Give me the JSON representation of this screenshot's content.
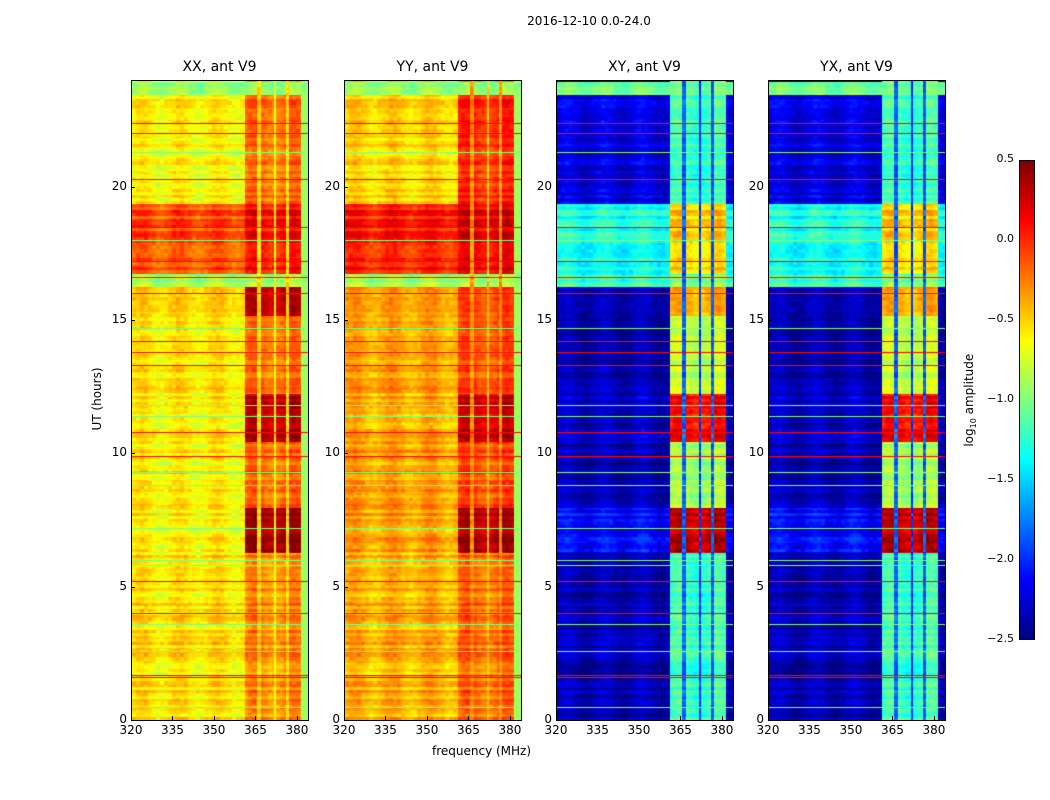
{
  "suptitle": "2016-12-10 0.0-24.0",
  "chart_data": {
    "type": "heatmap",
    "title": "2016-12-10 0.0-24.0",
    "xlabel": "frequency (MHz)",
    "ylabel": "UT (hours)",
    "xlim": [
      320,
      384
    ],
    "ylim": [
      0,
      24
    ],
    "xticks": [
      "320",
      "335",
      "350",
      "365",
      "380"
    ],
    "xtick_values": [
      320,
      335,
      350,
      365,
      380
    ],
    "yticks": [
      "0",
      "5",
      "10",
      "15",
      "20"
    ],
    "ytick_values": [
      0,
      5,
      10,
      15,
      20
    ],
    "colormap": "jet",
    "colorbar": {
      "label": "log10 amplitude",
      "label_main": "log",
      "label_sub": "10",
      "label_rest": " amplitude",
      "range": [
        -2.5,
        0.5
      ],
      "ticks": [
        "0.5",
        "0.0",
        "−0.5",
        "−1.0",
        "−1.5",
        "−2.0",
        "−2.5"
      ],
      "tick_values": [
        0.5,
        0.0,
        -0.5,
        -1.0,
        -1.5,
        -2.0,
        -2.5
      ]
    },
    "band_edges_mhz": [
      [
        360.5,
        365
      ],
      [
        366.6,
        371
      ],
      [
        372,
        375.6
      ],
      [
        376.7,
        381
      ]
    ],
    "time_segments_hours": [
      [
        0,
        6.3
      ],
      [
        6.3,
        8.0
      ],
      [
        8.0,
        10.5
      ],
      [
        10.5,
        12.3
      ],
      [
        12.3,
        15.2
      ],
      [
        15.2,
        16.3
      ],
      [
        16.3,
        16.8
      ],
      [
        16.8,
        19.4
      ],
      [
        19.4,
        23.5
      ],
      [
        23.5,
        24
      ]
    ],
    "panels": [
      {
        "title": "XX, ant V9",
        "background_log_amp": [
          -0.55,
          -0.6,
          -0.6,
          -0.6,
          -0.55,
          -0.5,
          -0.9,
          -0.1,
          -0.6,
          -0.9
        ],
        "band_log_amp": [
          -0.3,
          0.4,
          -0.2,
          0.3,
          -0.2,
          0.3,
          -0.9,
          0.1,
          -0.2,
          -0.9
        ],
        "gap_log_amp": -0.55
      },
      {
        "title": "YY, ant V9",
        "background_log_amp": [
          -0.4,
          -0.35,
          -0.35,
          -0.4,
          -0.35,
          -0.35,
          -0.9,
          0.05,
          -0.5,
          -0.9
        ],
        "band_log_amp": [
          -0.2,
          0.35,
          -0.1,
          0.25,
          -0.1,
          -0.1,
          -0.9,
          0.2,
          0.0,
          -0.9
        ],
        "gap_log_amp": -0.35
      },
      {
        "title": "XY, ant V9",
        "background_log_amp": [
          -2.35,
          -2.1,
          -2.35,
          -2.3,
          -2.35,
          -2.35,
          -1.2,
          -1.3,
          -2.2,
          -1.0
        ],
        "band_log_amp": [
          -1.2,
          0.3,
          -0.9,
          0.1,
          -0.8,
          -0.4,
          -1.0,
          -0.5,
          -1.2,
          -1.0
        ],
        "gap_log_amp": -1.9
      },
      {
        "title": "YX, ant V9",
        "background_log_amp": [
          -2.35,
          -2.1,
          -2.35,
          -2.3,
          -2.35,
          -2.35,
          -1.2,
          -1.3,
          -2.2,
          -1.0
        ],
        "band_log_amp": [
          -1.2,
          0.3,
          -0.9,
          0.1,
          -0.8,
          -0.4,
          -1.0,
          -0.5,
          -1.2,
          -1.0
        ],
        "gap_log_amp": -1.9
      }
    ],
    "flagged_lines_hours": [
      0.5,
      1.6,
      1.7,
      2.6,
      3.6,
      4.0,
      5.2,
      5.8,
      6.0,
      7.2,
      8.8,
      9.3,
      9.9,
      10.8,
      11.4,
      11.8,
      13.3,
      13.8,
      14.2,
      14.7,
      16.0,
      16.6,
      17.2,
      18.0,
      18.5,
      20.3,
      21.3,
      22.0,
      22.4
    ]
  }
}
